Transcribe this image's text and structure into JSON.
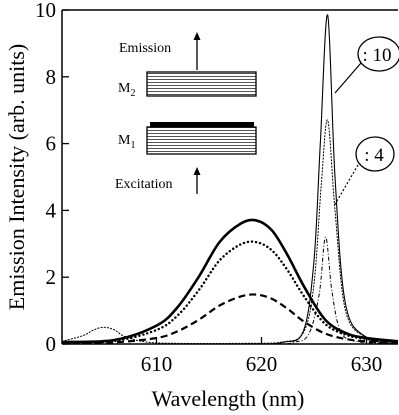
{
  "chart_data": {
    "type": "line",
    "xlabel": "Wavelength (nm)",
    "ylabel": "Emission Intensity (arb. units)",
    "xlim": [
      601,
      633
    ],
    "ylim": [
      0,
      10
    ],
    "x_ticks": [
      610,
      620,
      630
    ],
    "y_ticks": [
      0,
      2,
      4,
      6,
      8,
      10
    ],
    "grid": false,
    "legend": "none",
    "series": [
      {
        "style": "solid-thick",
        "x": [
          601,
          606,
          610,
          612,
          614,
          616,
          618,
          619.5,
          621,
          622.5,
          624,
          626,
          628,
          630,
          633
        ],
        "y": [
          0.06,
          0.12,
          0.55,
          1.1,
          2.0,
          3.05,
          3.6,
          3.7,
          3.4,
          2.65,
          1.75,
          0.75,
          0.33,
          0.18,
          0.08
        ]
      },
      {
        "style": "dotted-thick",
        "x": [
          601,
          606,
          610,
          612,
          614,
          616,
          618,
          619.5,
          621,
          622.5,
          624,
          626,
          628,
          630,
          633
        ],
        "y": [
          0.04,
          0.09,
          0.42,
          0.85,
          1.6,
          2.5,
          2.98,
          3.05,
          2.8,
          2.2,
          1.45,
          0.62,
          0.28,
          0.15,
          0.06
        ]
      },
      {
        "style": "dashed",
        "x": [
          601,
          606,
          610,
          612,
          614,
          616,
          618,
          619.5,
          621,
          622.5,
          624,
          626,
          628,
          630,
          633
        ],
        "y": [
          0.02,
          0.05,
          0.18,
          0.38,
          0.72,
          1.15,
          1.42,
          1.48,
          1.35,
          1.05,
          0.68,
          0.32,
          0.15,
          0.08,
          0.03
        ]
      },
      {
        "style": "dotted-thin",
        "x": [
          601,
          603,
          604,
          605,
          606,
          607,
          609,
          612,
          618,
          622,
          624,
          625,
          625.7,
          626.3,
          627,
          628,
          630,
          633
        ],
        "y": [
          0.08,
          0.25,
          0.42,
          0.5,
          0.42,
          0.22,
          0.06,
          0.02,
          0.02,
          0.06,
          0.35,
          1.8,
          4.8,
          6.7,
          4.0,
          1.0,
          0.2,
          0.05
        ]
      },
      {
        "style": "solid-thin",
        "x": [
          601,
          618,
          622,
          624,
          625,
          625.6,
          626.3,
          627,
          628,
          630,
          633
        ],
        "y": [
          0.0,
          0.0,
          0.05,
          0.4,
          2.5,
          6.0,
          9.85,
          5.0,
          1.2,
          0.2,
          0.0
        ]
      },
      {
        "style": "dash-dot-thin",
        "x": [
          601,
          620,
          623,
          624.5,
          625.5,
          626.1,
          626.7,
          627.5,
          629,
          633
        ],
        "y": [
          0.0,
          0.0,
          0.05,
          0.3,
          1.5,
          3.2,
          1.6,
          0.4,
          0.08,
          0.0
        ]
      }
    ],
    "annotations": [
      {
        "label": ": 10"
      },
      {
        "label": ": 4"
      }
    ],
    "inset": {
      "emission_label": "Emission",
      "excitation_label": "Excitation",
      "m2_label": "M",
      "m2_sub": "2",
      "m1_label": "M",
      "m1_sub": "1"
    }
  }
}
